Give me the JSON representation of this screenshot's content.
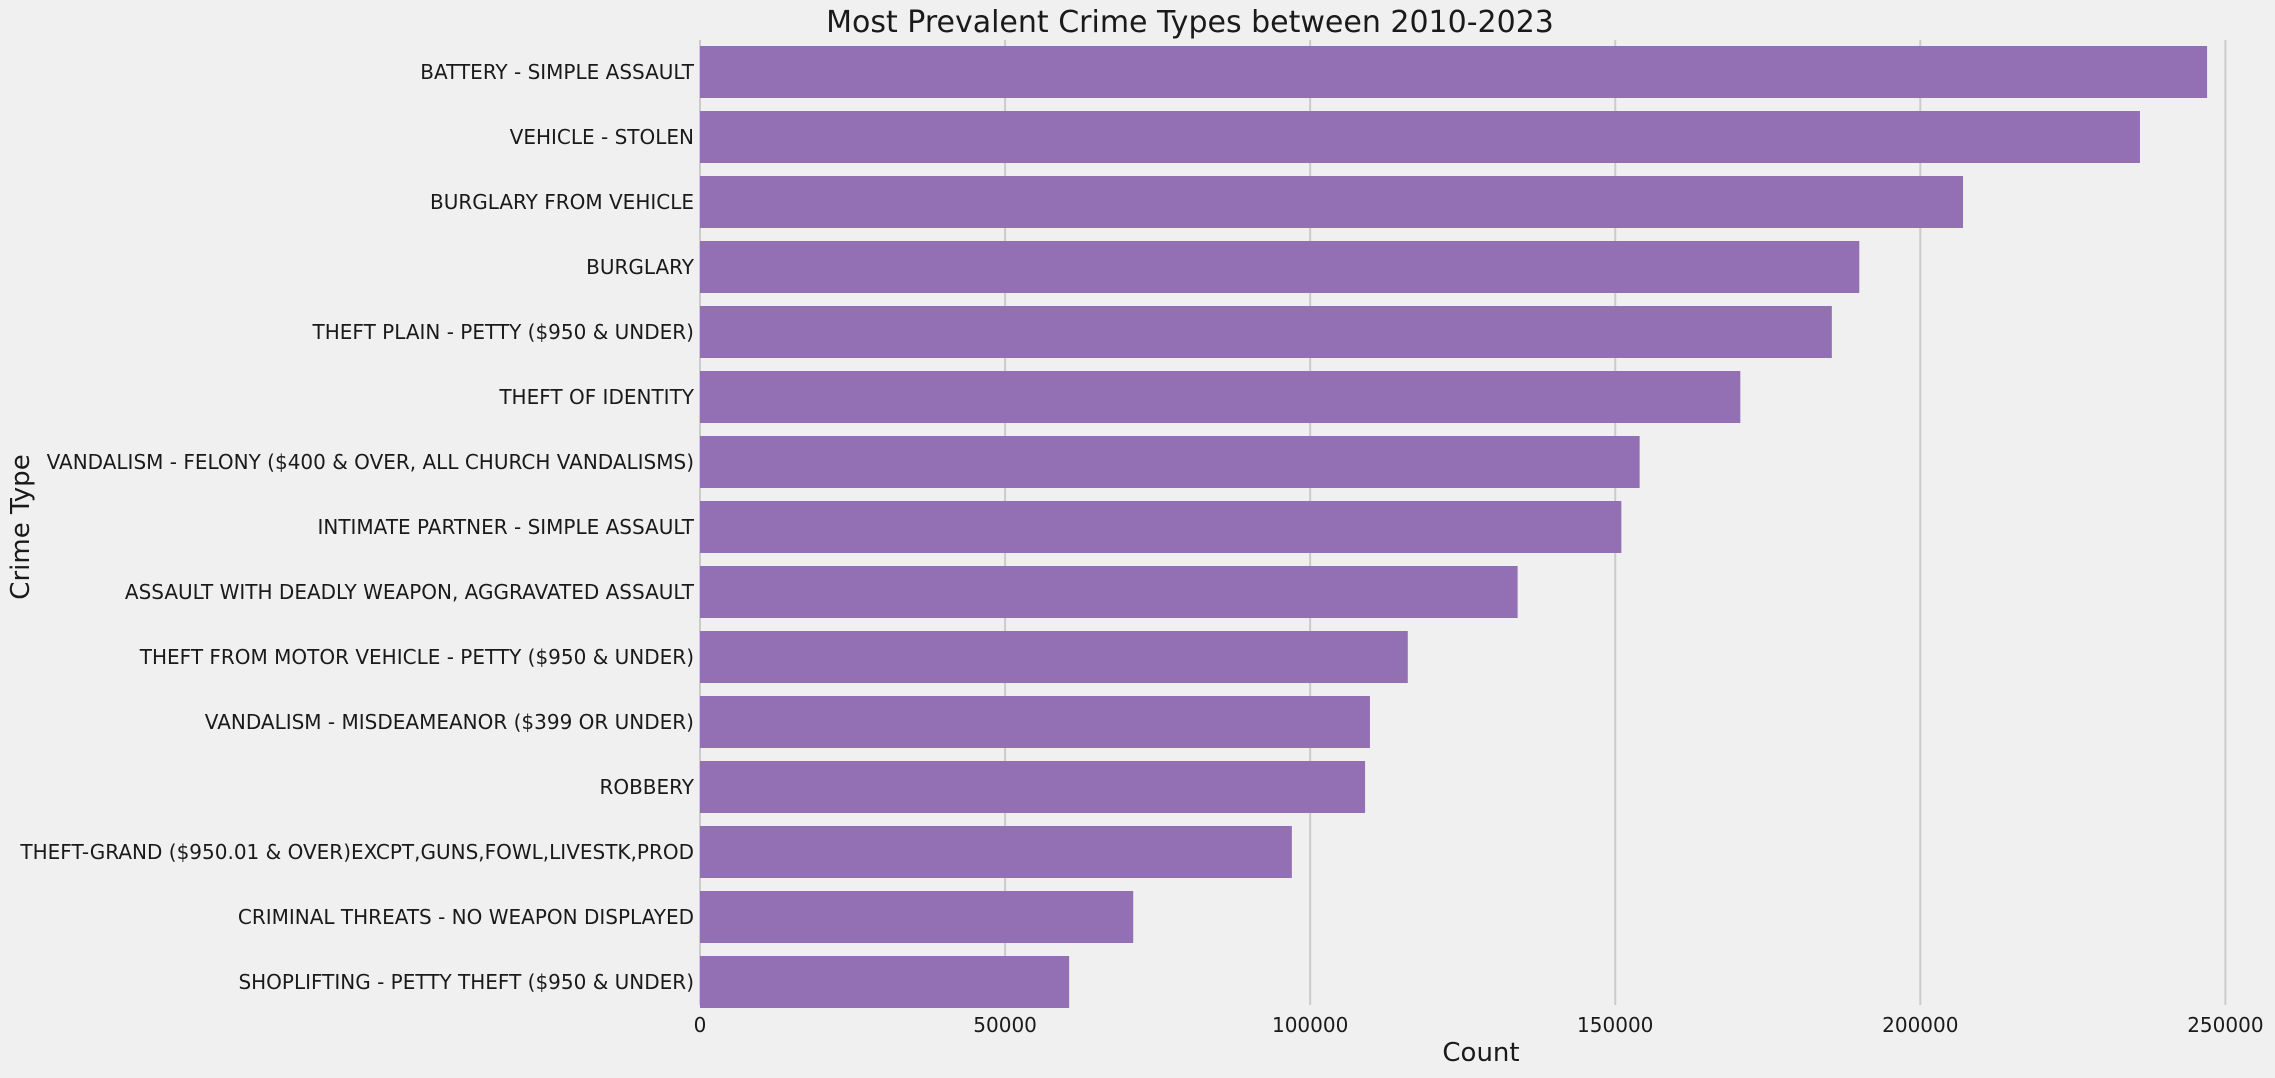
{
  "chart_data": {
    "type": "bar",
    "orientation": "horizontal",
    "title": "Most Prevalent Crime Types between 2010-2023",
    "xlabel": "Count",
    "ylabel": "Crime Type",
    "xlim": [
      0,
      256000
    ],
    "xticks": [
      0,
      50000,
      100000,
      150000,
      200000,
      250000
    ],
    "grid": "vertical",
    "bar_color": "#9370b3",
    "background_color": "#f0f0f0",
    "categories": [
      "BATTERY - SIMPLE ASSAULT",
      "VEHICLE - STOLEN",
      "BURGLARY FROM VEHICLE",
      "BURGLARY",
      "THEFT PLAIN - PETTY ($950 & UNDER)",
      "THEFT OF IDENTITY",
      "VANDALISM - FELONY ($400 & OVER, ALL CHURCH VANDALISMS)",
      "INTIMATE PARTNER - SIMPLE ASSAULT",
      "ASSAULT WITH DEADLY WEAPON, AGGRAVATED ASSAULT",
      "THEFT FROM MOTOR VEHICLE - PETTY ($950 & UNDER)",
      "VANDALISM - MISDEAMEANOR ($399 OR UNDER)",
      "ROBBERY",
      "THEFT-GRAND ($950.01 & OVER)EXCPT,GUNS,FOWL,LIVESTK,PROD",
      "CRIMINAL THREATS - NO WEAPON DISPLAYED",
      "SHOPLIFTING - PETTY THEFT ($950 & UNDER)"
    ],
    "values": [
      247000,
      236000,
      207000,
      190000,
      185500,
      170500,
      154000,
      151000,
      134000,
      116000,
      109800,
      109000,
      97000,
      71000,
      60500
    ]
  }
}
